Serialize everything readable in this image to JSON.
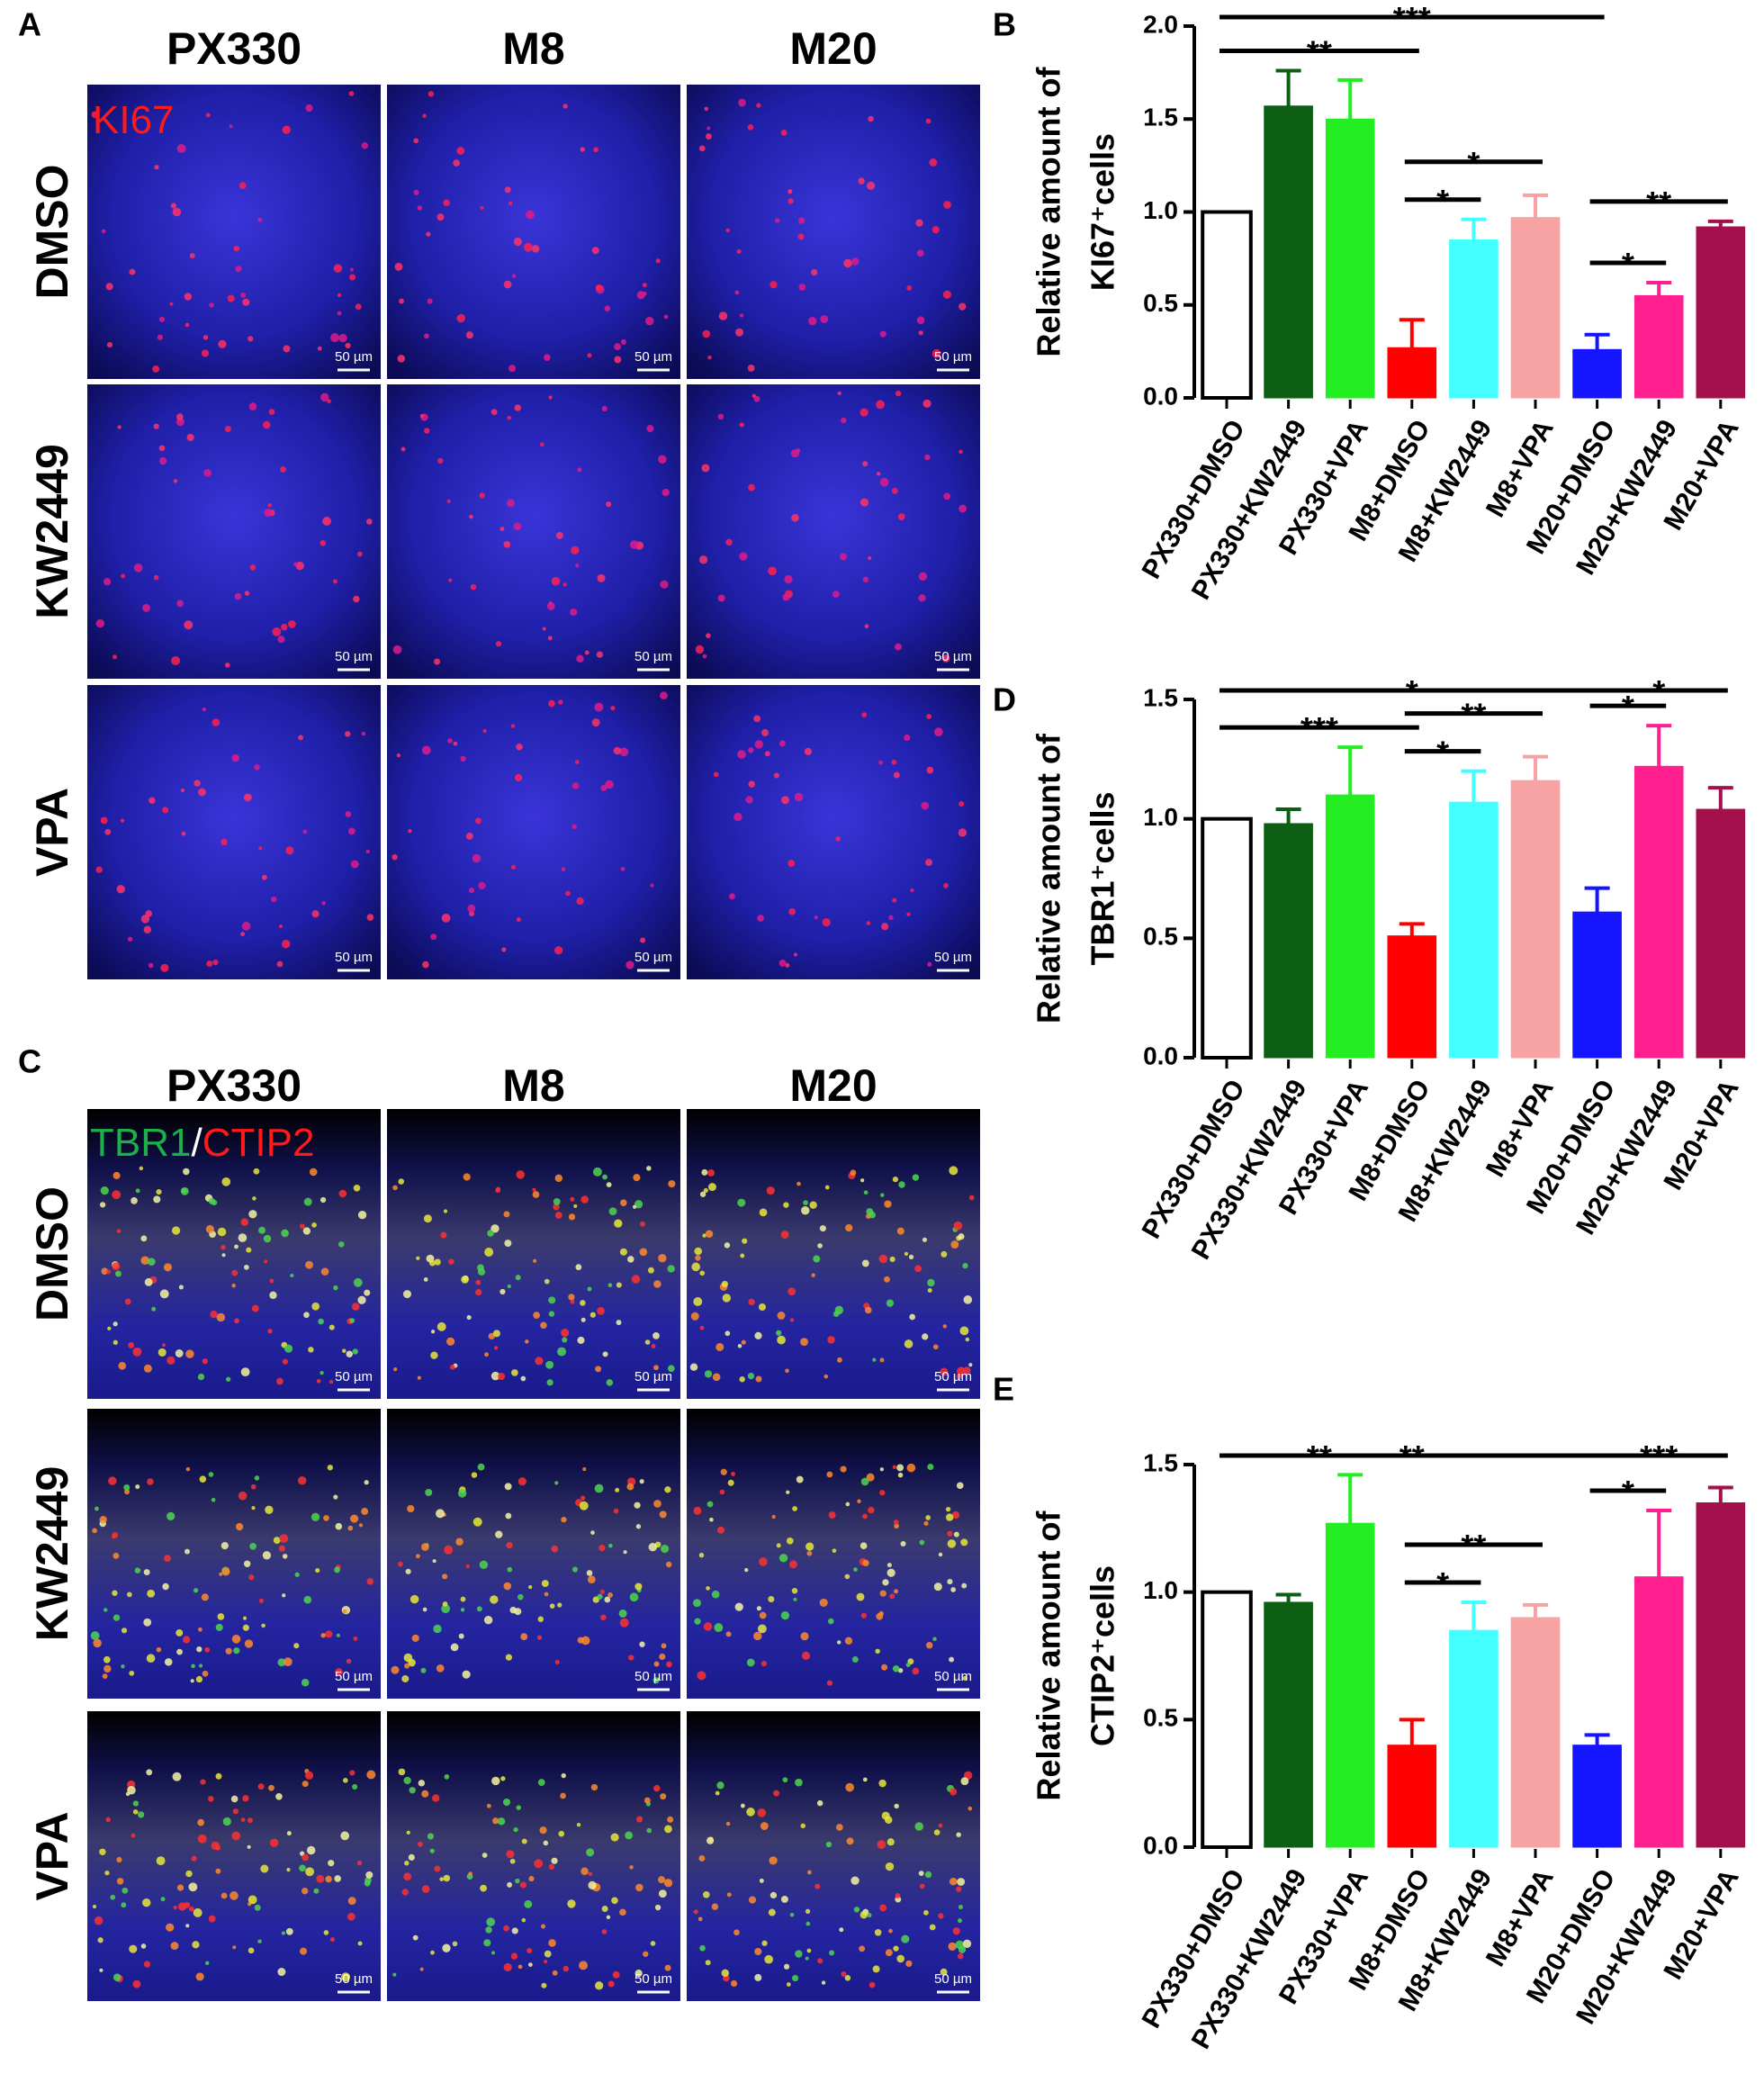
{
  "figure": {
    "panel_labels": [
      "A",
      "B",
      "C",
      "D",
      "E"
    ],
    "panel_a": {
      "columns": [
        "PX330",
        "M8",
        "M20"
      ],
      "rows": [
        "DMSO",
        "KW2449",
        "VPA"
      ],
      "stain": [
        "KI67"
      ]
    },
    "panel_c": {
      "columns": [
        "PX330",
        "M8",
        "M20"
      ],
      "rows": [
        "DMSO",
        "KW2449",
        "VPA"
      ],
      "stain": [
        "TBR1",
        "/",
        "CTIP2"
      ]
    },
    "scale_bar": "50 µm"
  },
  "chart_data": [
    {
      "type": "bar",
      "ylabel": [
        "Relative amount of",
        "KI67⁺cells"
      ],
      "categories": [
        "PX330+DMSO",
        "PX330+KW2449",
        "PX330+VPA",
        "M8+DMSO",
        "M8+KW2449",
        "M8+VPA",
        "M20+DMSO",
        "M20+KW2449",
        "M20+VPA"
      ],
      "values": [
        1.0,
        1.57,
        1.5,
        0.27,
        0.85,
        0.97,
        0.26,
        0.55,
        0.92
      ],
      "errors": [
        0,
        0.19,
        0.21,
        0.15,
        0.11,
        0.12,
        0.08,
        0.07,
        0.03
      ],
      "colors": [
        "#ffffff",
        "#0b5e12",
        "#22ee22",
        "#ff0000",
        "#44ffff",
        "#f7a3a3",
        "#1414ff",
        "#ff1f8e",
        "#a3104c"
      ],
      "ylim": [
        0,
        2.0
      ],
      "yticks": [
        {
          "value": 0,
          "label": "0.0"
        },
        0.5,
        {
          "value": 1,
          "label": "1.0"
        },
        1.5,
        {
          "value": 2,
          "label": "2.0"
        }
      ],
      "significance": [
        {
          "between": [
            "M8+DMSO",
            "M8+KW2449"
          ],
          "label": "*"
        },
        {
          "between": [
            "M20+DMSO",
            "M20+KW2449"
          ],
          "label": "*"
        },
        {
          "between": [
            "M8+DMSO",
            "M8+VPA"
          ],
          "label": "*"
        },
        {
          "between": [
            "M20+DMSO",
            "M20+VPA"
          ],
          "label": "**"
        },
        {
          "between": [
            "PX330+DMSO",
            "M8+DMSO"
          ],
          "label": "**"
        },
        {
          "between": [
            "PX330+DMSO",
            "M20+DMSO"
          ],
          "label": "***"
        }
      ]
    },
    {
      "type": "bar",
      "ylabel": [
        "Relative amount of",
        "TBR1⁺cells"
      ],
      "categories": [
        "PX330+DMSO",
        "PX330+KW2449",
        "PX330+VPA",
        "M8+DMSO",
        "M8+KW2449",
        "M8+VPA",
        "M20+DMSO",
        "M20+KW2449",
        "M20+VPA"
      ],
      "values": [
        1.0,
        0.98,
        1.1,
        0.51,
        1.07,
        1.16,
        0.61,
        1.22,
        1.04
      ],
      "errors": [
        0,
        0.06,
        0.2,
        0.05,
        0.13,
        0.1,
        0.1,
        0.17,
        0.09
      ],
      "colors": [
        "#ffffff",
        "#0b5e12",
        "#22ee22",
        "#ff0000",
        "#44ffff",
        "#f7a3a3",
        "#1414ff",
        "#ff1f8e",
        "#a3104c"
      ],
      "ylim": [
        0,
        1.5
      ],
      "yticks": [
        {
          "value": 0,
          "label": "0.0"
        },
        0.5,
        {
          "value": 1,
          "label": "1.0"
        },
        1.5
      ],
      "significance": [
        {
          "between": [
            "M8+DMSO",
            "M8+KW2449"
          ],
          "label": "*"
        },
        {
          "between": [
            "M20+DMSO",
            "M20+KW2449"
          ],
          "label": "*"
        },
        {
          "between": [
            "M8+DMSO",
            "M8+VPA"
          ],
          "label": "**"
        },
        {
          "between": [
            "M20+DMSO",
            "M20+VPA"
          ],
          "label": "*"
        },
        {
          "between": [
            "PX330+DMSO",
            "M8+DMSO"
          ],
          "label": "***"
        },
        {
          "between": [
            "PX330+DMSO",
            "M20+DMSO"
          ],
          "label": "*"
        }
      ]
    },
    {
      "type": "bar",
      "ylabel": [
        "Relative amount of",
        "CTIP2⁺cells"
      ],
      "categories": [
        "PX330+DMSO",
        "PX330+KW2449",
        "PX330+VPA",
        "M8+DMSO",
        "M8+KW2449",
        "M8+VPA",
        "M20+DMSO",
        "M20+KW2449",
        "M20+VPA"
      ],
      "values": [
        1.0,
        0.96,
        1.27,
        0.4,
        0.85,
        0.9,
        0.4,
        1.06,
        1.35
      ],
      "errors": [
        0,
        0.03,
        0.19,
        0.1,
        0.11,
        0.05,
        0.04,
        0.26,
        0.06
      ],
      "colors": [
        "#ffffff",
        "#0b5e12",
        "#22ee22",
        "#ff0000",
        "#44ffff",
        "#f7a3a3",
        "#1414ff",
        "#ff1f8e",
        "#a3104c"
      ],
      "ylim": [
        0,
        1.5
      ],
      "yticks": [
        {
          "value": 0,
          "label": "0.0"
        },
        0.5,
        {
          "value": 1,
          "label": "1.0"
        },
        1.5
      ],
      "significance": [
        {
          "between": [
            "M8+DMSO",
            "M8+KW2449"
          ],
          "label": "*"
        },
        {
          "between": [
            "M20+DMSO",
            "M20+KW2449"
          ],
          "label": "*"
        },
        {
          "between": [
            "M8+DMSO",
            "M8+VPA"
          ],
          "label": "**"
        },
        {
          "between": [
            "M20+DMSO",
            "M20+VPA"
          ],
          "label": "***"
        },
        {
          "between": [
            "PX330+DMSO",
            "M8+DMSO"
          ],
          "label": "**"
        },
        {
          "between": [
            "PX330+DMSO",
            "M20+DMSO"
          ],
          "label": "**"
        }
      ]
    }
  ]
}
